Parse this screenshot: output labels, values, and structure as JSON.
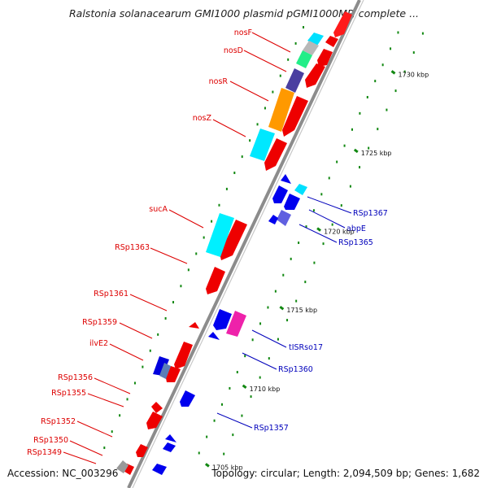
{
  "title": "Ralstonia solanacearum GMI1000 plasmid pGMI1000MP, complete ...",
  "footer": {
    "accession": "Accession: NC_003296",
    "info": "Topology: circular; Length: 2,094,509 bp; Genes: 1,682"
  },
  "colors": {
    "forward_label": "#dd0000",
    "reverse_label": "#0000bb",
    "backbone": "#9a9a9a",
    "forward_gene": "#ff0000",
    "reverse_gene": "#0000ee",
    "tick": "#118811"
  },
  "scale": {
    "ticks": [
      {
        "label": "1705 kbp",
        "kb": 1705
      },
      {
        "label": "1710 kbp",
        "kb": 1710
      },
      {
        "label": "1715 kbp",
        "kb": 1715
      },
      {
        "label": "1720 kbp",
        "kb": 1720
      },
      {
        "label": "1725 kbp",
        "kb": 1725
      },
      {
        "label": "1730 kbp",
        "kb": 1730
      }
    ]
  },
  "forward_labels": [
    "nosF",
    "nosD",
    "nosR",
    "nosZ",
    "sucA",
    "RSp1363",
    "RSp1361",
    "RSp1359",
    "ilvE2",
    "RSp1356",
    "RSp1355",
    "RSp1352",
    "RSp1350",
    "RSp1349"
  ],
  "reverse_labels": [
    "RSp1367",
    "abpE",
    "RSp1365",
    "tISRso17",
    "RSp1360",
    "RSp1357"
  ],
  "genes": [
    {
      "name": "nosF-cog",
      "strand": "fwd",
      "color": "cyan"
    },
    {
      "name": "nosD-cog",
      "strand": "fwd",
      "color": "green"
    },
    {
      "name": "nosR-cog",
      "strand": "fwd",
      "color": "purple"
    },
    {
      "name": "nosZ-cog",
      "strand": "fwd",
      "color": "orange"
    },
    {
      "name": "sucA-cog",
      "strand": "fwd",
      "color": "cyan"
    },
    {
      "name": "RSp1367-cog",
      "strand": "rev",
      "color": "cyan"
    },
    {
      "name": "RSp1365-cog",
      "strand": "rev",
      "color": "purple"
    },
    {
      "name": "tISRso17-cog",
      "strand": "rev",
      "color": "magenta"
    },
    {
      "name": "ilvE2-cog",
      "strand": "fwd",
      "color": "blue"
    }
  ]
}
